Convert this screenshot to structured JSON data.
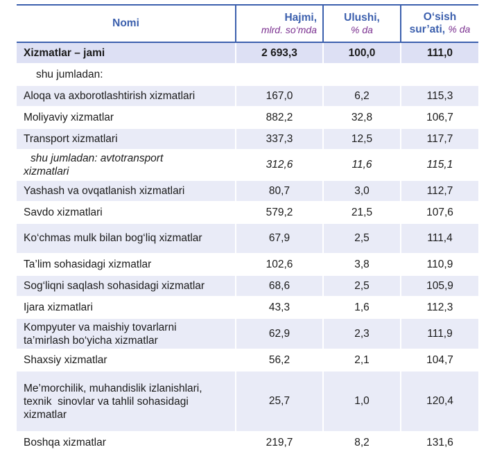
{
  "header": {
    "name": "Nomi",
    "volume": "Hajmi,",
    "volume_unit": "mlrd. so‘mda",
    "share": "Ulushi,",
    "share_unit": "% da",
    "growth": "O‘sish",
    "growth_line2": "sur’ati,",
    "growth_unit": "% da"
  },
  "rows": [
    {
      "name": "Xizmatlar – jami",
      "volume": "2 693,3",
      "share": "100,0",
      "growth": "111,0"
    },
    {
      "name": "shu jumladan:",
      "volume": "",
      "share": "",
      "growth": ""
    },
    {
      "name": "Aloqa va axborotlashtirish xizmatlari",
      "volume": "167,0",
      "share": "6,2",
      "growth": "115,3"
    },
    {
      "name": "Moliyaviy xizmatlar",
      "volume": "882,2",
      "share": "32,8",
      "growth": "106,7"
    },
    {
      "name": "Transport xizmatlari",
      "volume": "337,3",
      "share": "12,5",
      "growth": "117,7"
    },
    {
      "name_l1": "shu jumladan: avtotransport",
      "name_l2": "xizmatlari",
      "volume": "312,6",
      "share": "11,6",
      "growth": "115,1"
    },
    {
      "name": "Yashash va ovqatlanish xizmatlari",
      "volume": "80,7",
      "share": "3,0",
      "growth": "112,7"
    },
    {
      "name": "Savdo xizmatlari",
      "volume": "579,2",
      "share": "21,5",
      "growth": "107,6"
    },
    {
      "name": "Ko‘chmas mulk bilan bog‘liq xizmatlar",
      "volume": "67,9",
      "share": "2,5",
      "growth": "111,4"
    },
    {
      "name": "Ta’lim sohasidagi xizmatlar",
      "volume": "102,6",
      "share": "3,8",
      "growth": "110,9"
    },
    {
      "name": "Sog‘liqni saqlash sohasidagi xizmatlar",
      "volume": "68,6",
      "share": "2,5",
      "growth": "105,9"
    },
    {
      "name": "Ijara xizmatlari",
      "volume": "43,3",
      "share": "1,6",
      "growth": "112,3"
    },
    {
      "name_l1": "Kompyuter va maishiy tovarlarni",
      "name_l2": "ta’mirlash bo‘yicha xizmatlar",
      "volume": "62,9",
      "share": "2,3",
      "growth": "111,9"
    },
    {
      "name": "Shaxsiy xizmatlar",
      "volume": "56,2",
      "share": "2,1",
      "growth": "104,7"
    },
    {
      "name_l1": "Me’morchilik, muhandislik izlanishlari,",
      "name_l2": "texnik  sinovlar va tahlil sohasidagi",
      "name_l3": "xizmatlar",
      "volume": "25,7",
      "share": "1,0",
      "growth": "120,4"
    },
    {
      "name": "Boshqa xizmatlar",
      "volume": "219,7",
      "share": "8,2",
      "growth": "131,6"
    }
  ]
}
